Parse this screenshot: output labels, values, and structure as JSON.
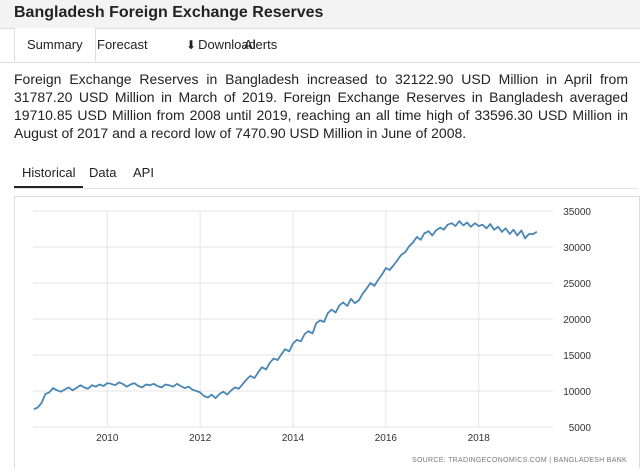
{
  "header": {
    "title": "Bangladesh Foreign Exchange Reserves"
  },
  "tabs": [
    {
      "label": "Summary",
      "active": true
    },
    {
      "label": "Forecast"
    },
    {
      "label": "Download",
      "icon": "download-icon"
    },
    {
      "label": "Alerts"
    }
  ],
  "summary_text": "Foreign Exchange Reserves in Bangladesh increased to 32122.90 USD Million in April from 31787.20 USD Million in March of 2019. Foreign Exchange Reserves in Bangladesh averaged 19710.85 USD Million from 2008 until 2019, reaching an all time high of 33596.30 USD Million in August of 2017 and a record low of 7470.90 USD Million in June of 2008.",
  "subtabs": [
    {
      "label": "Historical",
      "active": true
    },
    {
      "label": "Data"
    },
    {
      "label": "API"
    }
  ],
  "chart_data": {
    "type": "line",
    "xlim": [
      2008.4,
      2019.6
    ],
    "ylim": [
      5000,
      35000
    ],
    "x_ticks": [
      2010,
      2012,
      2014,
      2016,
      2018
    ],
    "x_tick_labels": [
      "2010",
      "2012",
      "2014",
      "2016",
      "2018"
    ],
    "y_ticks": [
      5000,
      10000,
      15000,
      20000,
      25000,
      30000,
      35000
    ],
    "y_tick_labels": [
      "5000",
      "10000",
      "15000",
      "20000",
      "25000",
      "30000",
      "35000"
    ],
    "grid": true,
    "line_color": "#4a86b4",
    "source": "SOURCE: TRADINGECONOMICS.COM  |  BANGLADESH BANK",
    "series": [
      {
        "x": [
          2008.42,
          2008.5,
          2008.58,
          2008.67,
          2008.75,
          2008.83,
          2008.92,
          2009.0,
          2009.08,
          2009.17,
          2009.25,
          2009.33,
          2009.42,
          2009.5,
          2009.58,
          2009.67,
          2009.75,
          2009.83,
          2009.92,
          2010.0,
          2010.08,
          2010.17,
          2010.25,
          2010.33,
          2010.42,
          2010.5,
          2010.58,
          2010.67,
          2010.75,
          2010.83,
          2010.92,
          2011.0,
          2011.08,
          2011.17,
          2011.25,
          2011.33,
          2011.42,
          2011.5,
          2011.58,
          2011.67,
          2011.75,
          2011.83,
          2011.92,
          2012.0,
          2012.08,
          2012.17,
          2012.25,
          2012.33,
          2012.42,
          2012.5,
          2012.58,
          2012.67,
          2012.75,
          2012.83,
          2012.92,
          2013.0,
          2013.08,
          2013.17,
          2013.25,
          2013.33,
          2013.42,
          2013.5,
          2013.58,
          2013.67,
          2013.75,
          2013.83,
          2013.92,
          2014.0,
          2014.08,
          2014.17,
          2014.25,
          2014.33,
          2014.42,
          2014.5,
          2014.58,
          2014.67,
          2014.75,
          2014.83,
          2014.92,
          2015.0,
          2015.08,
          2015.17,
          2015.25,
          2015.33,
          2015.42,
          2015.5,
          2015.58,
          2015.67,
          2015.75,
          2015.83,
          2015.92,
          2016.0,
          2016.08,
          2016.17,
          2016.25,
          2016.33,
          2016.42,
          2016.5,
          2016.58,
          2016.67,
          2016.75,
          2016.83,
          2016.92,
          2017.0,
          2017.08,
          2017.17,
          2017.25,
          2017.33,
          2017.42,
          2017.5,
          2017.58,
          2017.67,
          2017.75,
          2017.83,
          2017.92,
          2018.0,
          2018.08,
          2018.17,
          2018.25,
          2018.33,
          2018.42,
          2018.5,
          2018.58,
          2018.67,
          2018.75,
          2018.83,
          2018.92,
          2019.0,
          2019.08,
          2019.17,
          2019.25
        ],
        "y": [
          7471,
          7700,
          8300,
          9600,
          9800,
          10400,
          10100,
          9900,
          10200,
          10500,
          10100,
          10400,
          10800,
          10500,
          10300,
          10800,
          10600,
          10900,
          10700,
          11100,
          11000,
          10800,
          11200,
          11000,
          10600,
          10900,
          11100,
          10700,
          10500,
          10900,
          10800,
          11000,
          10700,
          10500,
          10900,
          10800,
          10600,
          11000,
          10700,
          10400,
          10600,
          10200,
          10000,
          9800,
          9300,
          9100,
          9500,
          9000,
          9600,
          9900,
          9500,
          10100,
          10500,
          10300,
          11000,
          11600,
          12100,
          11800,
          12600,
          13300,
          13000,
          13900,
          14500,
          14300,
          15100,
          15800,
          15500,
          16600,
          17100,
          16900,
          17900,
          18300,
          18000,
          19400,
          19800,
          19600,
          20800,
          21300,
          20900,
          21900,
          22300,
          21800,
          22800,
          22200,
          22600,
          23500,
          24200,
          25000,
          24600,
          25400,
          26200,
          27100,
          26800,
          27500,
          28200,
          28900,
          29300,
          30100,
          30600,
          31400,
          31000,
          31900,
          32200,
          31600,
          32300,
          32700,
          32400,
          33100,
          33300,
          32900,
          33600,
          33000,
          33400,
          32800,
          33300,
          32900,
          33100,
          32600,
          33200,
          32400,
          32800,
          32100,
          32600,
          31800,
          32400,
          31600,
          32300,
          31200,
          31800,
          31787,
          32123
        ]
      }
    ]
  }
}
